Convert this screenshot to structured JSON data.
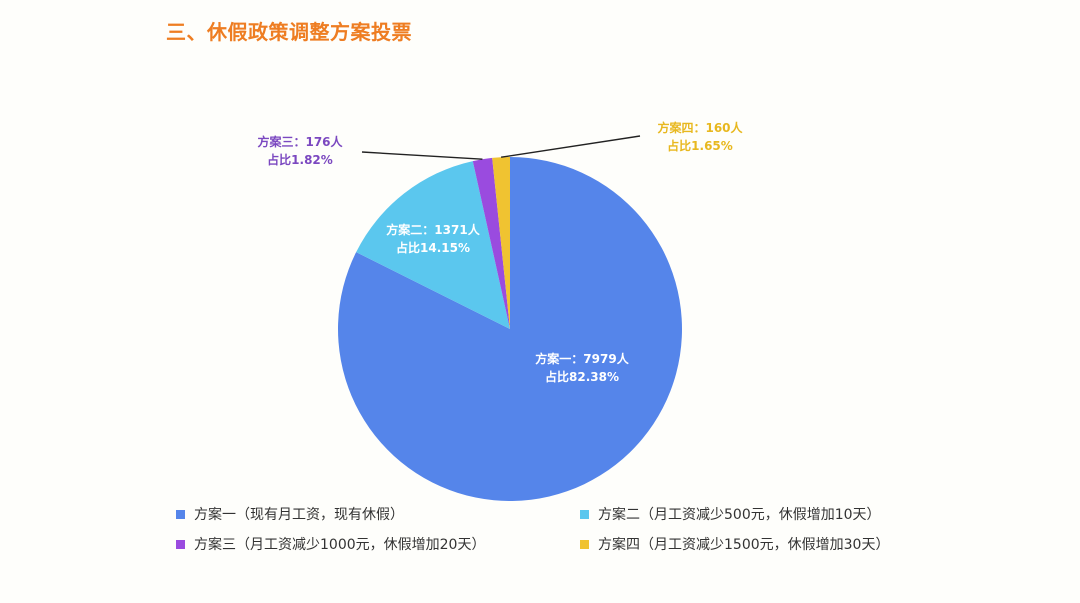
{
  "page": {
    "title": "三、休假政策调整方案投票"
  },
  "colors": {
    "title": "#ee7d22",
    "background": "#fefefb"
  },
  "chart_data": {
    "type": "pie",
    "title": "",
    "legend_position": "bottom",
    "slices": [
      {
        "name": "方案一（现有月工资，现有休假）",
        "short": "方案一",
        "count": 7979,
        "percent": 82.38,
        "label_line1": "方案一：7979人",
        "label_line2": "占比82.38%",
        "color": "#5585ea",
        "label_color": "#ffffff"
      },
      {
        "name": "方案二（月工资减少500元，休假增加10天）",
        "short": "方案二",
        "count": 1371,
        "percent": 14.15,
        "label_line1": "方案二：1371人",
        "label_line2": "占比14.15%",
        "color": "#5bc7ee",
        "label_color": "#ffffff"
      },
      {
        "name": "方案三（月工资减少1000元，休假增加20天）",
        "short": "方案三",
        "count": 176,
        "percent": 1.82,
        "label_line1": "方案三：176人",
        "label_line2": "占比1.82%",
        "color": "#9a4bdf",
        "label_color": "#7b48c0"
      },
      {
        "name": "方案四（月工资减少1500元，休假增加30天）",
        "short": "方案四",
        "count": 160,
        "percent": 1.65,
        "label_line1": "方案四：160人",
        "label_line2": "占比1.65%",
        "color": "#f0c331",
        "label_color": "#e8b81f"
      }
    ]
  }
}
